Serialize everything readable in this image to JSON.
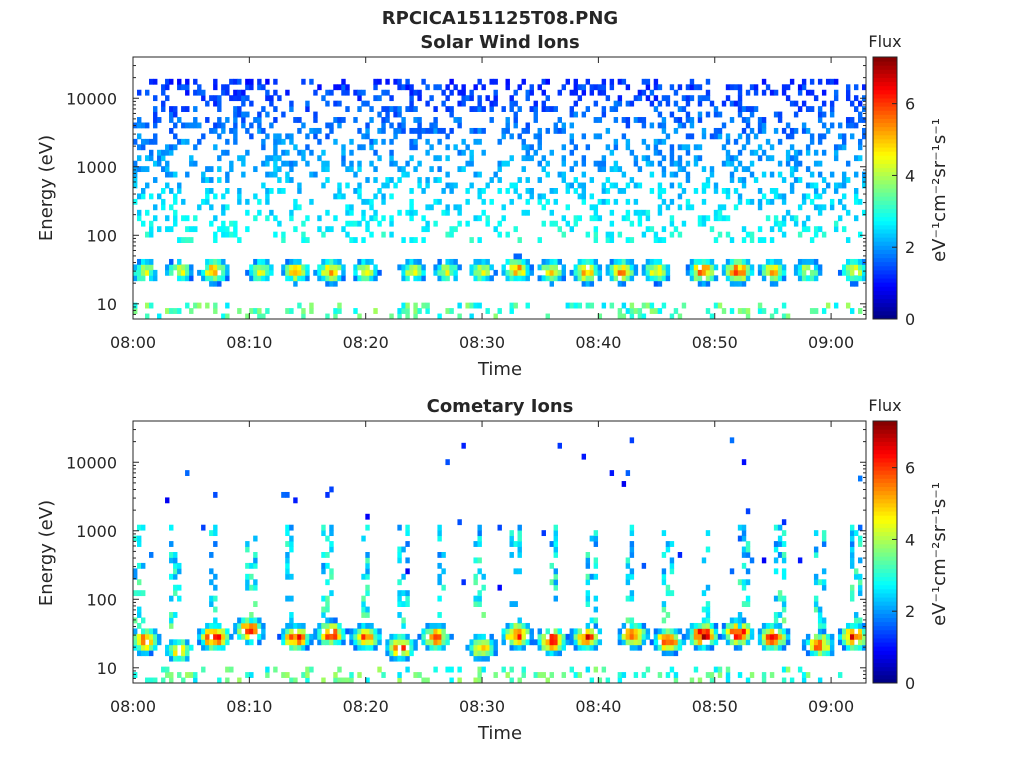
{
  "figure_title": "RPCICA151125T08.PNG",
  "colorbar": {
    "title": "Flux",
    "unit_label": "eV⁻¹cm⁻²sr⁻¹s⁻¹",
    "ticks": [
      "0",
      "2",
      "4",
      "6"
    ],
    "range": [
      0,
      7.3
    ],
    "colormap": "jet"
  },
  "chart_data": [
    {
      "type": "heatmap",
      "title": "Solar Wind Ions",
      "xlabel": "Time",
      "ylabel": "Energy (eV)",
      "xlim": [
        "08:00",
        "09:03"
      ],
      "ylim": [
        6,
        40000
      ],
      "yscale": "log",
      "xticks": [
        "08:00",
        "08:10",
        "08:20",
        "08:30",
        "08:40",
        "08:50",
        "09:00"
      ],
      "yticks": [
        "10",
        "100",
        "1000",
        "10000"
      ],
      "peaks": [
        {
          "time": "08:01",
          "energy": 30,
          "flux": 4.5
        },
        {
          "time": "08:04",
          "energy": 30,
          "flux": 4.5
        },
        {
          "time": "08:07",
          "energy": 30,
          "flux": 5.5
        },
        {
          "time": "08:11",
          "energy": 30,
          "flux": 4.5
        },
        {
          "time": "08:14",
          "energy": 30,
          "flux": 5.0
        },
        {
          "time": "08:17",
          "energy": 30,
          "flux": 5.5
        },
        {
          "time": "08:20",
          "energy": 30,
          "flux": 4.5
        },
        {
          "time": "08:24",
          "energy": 30,
          "flux": 4.5
        },
        {
          "time": "08:27",
          "energy": 30,
          "flux": 4.5
        },
        {
          "time": "08:30",
          "energy": 30,
          "flux": 4.5
        },
        {
          "time": "08:33",
          "energy": 32,
          "flux": 5.5
        },
        {
          "time": "08:36",
          "energy": 30,
          "flux": 5.0
        },
        {
          "time": "08:39",
          "energy": 30,
          "flux": 5.5
        },
        {
          "time": "08:42",
          "energy": 30,
          "flux": 5.5
        },
        {
          "time": "08:45",
          "energy": 30,
          "flux": 5.0
        },
        {
          "time": "08:49",
          "energy": 30,
          "flux": 6.0
        },
        {
          "time": "08:52",
          "energy": 30,
          "flux": 6.0
        },
        {
          "time": "08:55",
          "energy": 30,
          "flux": 5.0
        },
        {
          "time": "08:58",
          "energy": 30,
          "flux": 4.5
        },
        {
          "time": "09:02",
          "energy": 30,
          "flux": 5.0
        }
      ]
    },
    {
      "type": "heatmap",
      "title": "Cometary Ions",
      "xlabel": "Time",
      "ylabel": "Energy (eV)",
      "xlim": [
        "08:00",
        "09:03"
      ],
      "ylim": [
        6,
        40000
      ],
      "yscale": "log",
      "xticks": [
        "08:00",
        "08:10",
        "08:20",
        "08:30",
        "08:40",
        "08:50",
        "09:00"
      ],
      "yticks": [
        "10",
        "100",
        "1000",
        "10000"
      ],
      "peaks": [
        {
          "time": "08:01",
          "energy": 25,
          "flux": 6.0
        },
        {
          "time": "08:04",
          "energy": 18,
          "flux": 5.0
        },
        {
          "time": "08:07",
          "energy": 28,
          "flux": 7.0
        },
        {
          "time": "08:10",
          "energy": 35,
          "flux": 6.5
        },
        {
          "time": "08:14",
          "energy": 28,
          "flux": 6.5
        },
        {
          "time": "08:17",
          "energy": 32,
          "flux": 6.5
        },
        {
          "time": "08:20",
          "energy": 28,
          "flux": 6.0
        },
        {
          "time": "08:23",
          "energy": 20,
          "flux": 6.0
        },
        {
          "time": "08:26",
          "energy": 28,
          "flux": 6.0
        },
        {
          "time": "08:30",
          "energy": 20,
          "flux": 5.5
        },
        {
          "time": "08:33",
          "energy": 30,
          "flux": 6.5
        },
        {
          "time": "08:36",
          "energy": 25,
          "flux": 6.5
        },
        {
          "time": "08:39",
          "energy": 28,
          "flux": 6.5
        },
        {
          "time": "08:43",
          "energy": 30,
          "flux": 6.0
        },
        {
          "time": "08:46",
          "energy": 25,
          "flux": 6.5
        },
        {
          "time": "08:49",
          "energy": 30,
          "flux": 7.0
        },
        {
          "time": "08:52",
          "energy": 32,
          "flux": 7.0
        },
        {
          "time": "08:55",
          "energy": 28,
          "flux": 6.5
        },
        {
          "time": "08:59",
          "energy": 22,
          "flux": 6.0
        },
        {
          "time": "09:02",
          "energy": 28,
          "flux": 6.5
        }
      ]
    }
  ]
}
